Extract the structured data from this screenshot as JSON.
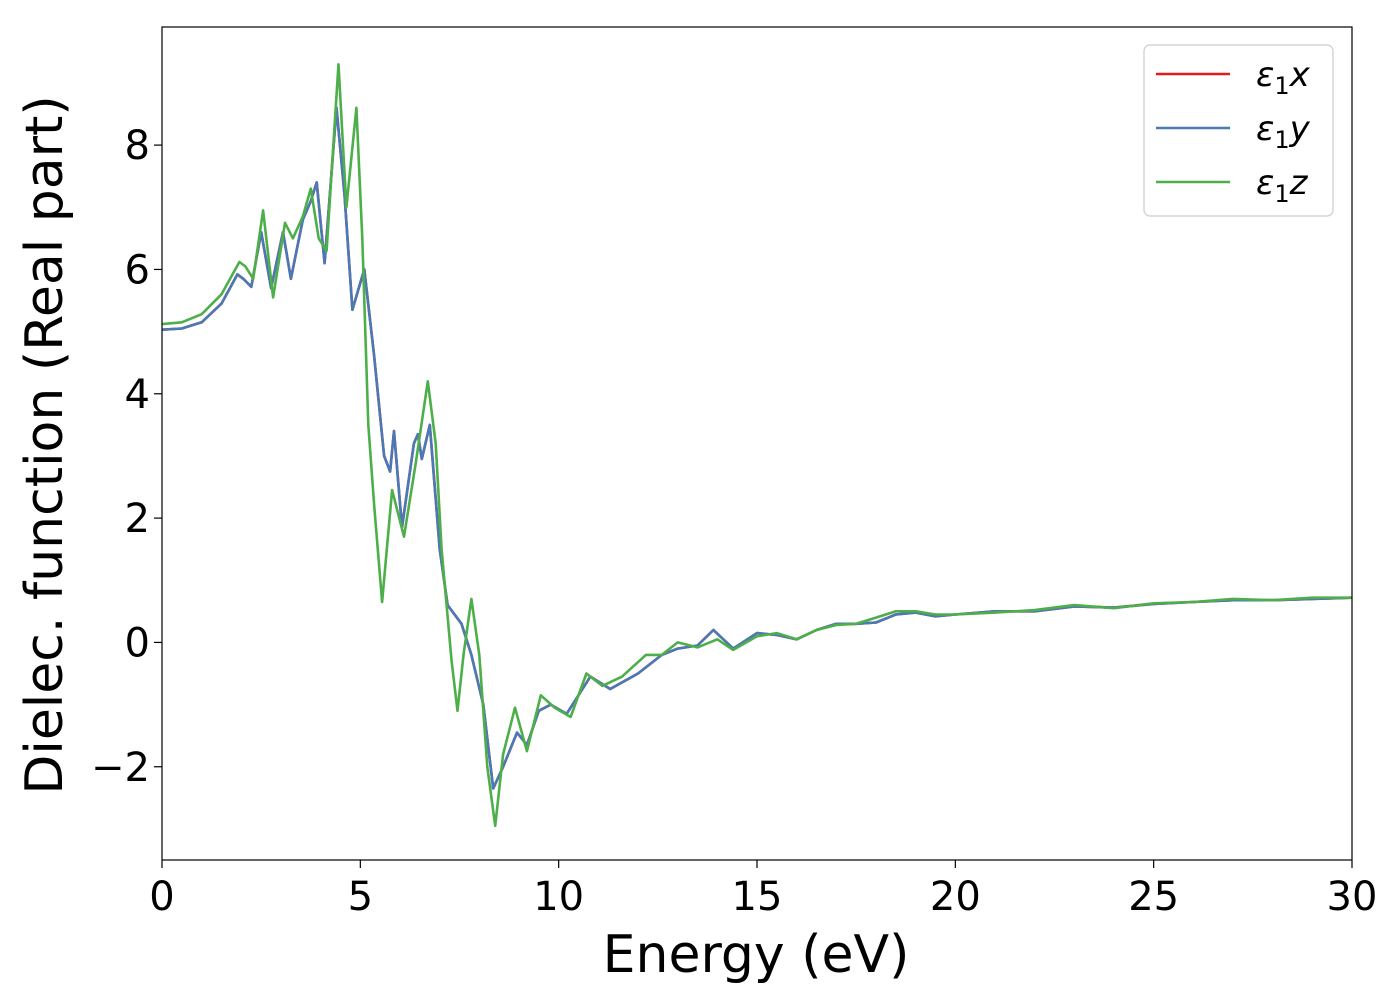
{
  "chart_data": {
    "type": "line",
    "title": "",
    "xlabel": "Energy (eV)",
    "ylabel": "Dielec. function (Real part)",
    "xlim": [
      0,
      30
    ],
    "ylim": [
      -3.5,
      9.9
    ],
    "xticks": [
      0,
      5,
      10,
      15,
      20,
      25,
      30
    ],
    "xtick_labels": [
      "0",
      "5",
      "10",
      "15",
      "20",
      "25",
      "30"
    ],
    "yticks": [
      -2,
      0,
      2,
      4,
      6,
      8
    ],
    "ytick_labels": [
      "−2",
      "0",
      "2",
      "4",
      "6",
      "8"
    ],
    "grid": false,
    "legend_position": "top-right",
    "series": [
      {
        "name": "ε1x",
        "legend_main": "ε",
        "legend_sub": "1",
        "legend_var": "x",
        "color": "#e41a1c",
        "points": [
          [
            0,
            5.03
          ],
          [
            0.5,
            5.05
          ],
          [
            1,
            5.15
          ],
          [
            1.5,
            5.45
          ],
          [
            1.9,
            5.92
          ],
          [
            2.05,
            5.85
          ],
          [
            2.25,
            5.72
          ],
          [
            2.5,
            6.6
          ],
          [
            2.75,
            5.7
          ],
          [
            3.05,
            6.6
          ],
          [
            3.25,
            5.85
          ],
          [
            3.55,
            6.8
          ],
          [
            3.75,
            7.1
          ],
          [
            3.9,
            7.4
          ],
          [
            4.1,
            6.1
          ],
          [
            4.4,
            8.6
          ],
          [
            4.6,
            7.2
          ],
          [
            4.8,
            5.35
          ],
          [
            5.1,
            6.0
          ],
          [
            5.35,
            4.6
          ],
          [
            5.6,
            3.0
          ],
          [
            5.75,
            2.75
          ],
          [
            5.85,
            3.4
          ],
          [
            6.05,
            1.85
          ],
          [
            6.35,
            3.2
          ],
          [
            6.45,
            3.35
          ],
          [
            6.55,
            2.95
          ],
          [
            6.75,
            3.5
          ],
          [
            7.0,
            1.5
          ],
          [
            7.2,
            0.6
          ],
          [
            7.55,
            0.3
          ],
          [
            7.8,
            -0.2
          ],
          [
            8.1,
            -1.0
          ],
          [
            8.35,
            -2.35
          ],
          [
            8.6,
            -2.0
          ],
          [
            8.95,
            -1.45
          ],
          [
            9.2,
            -1.65
          ],
          [
            9.5,
            -1.1
          ],
          [
            9.8,
            -1.0
          ],
          [
            10.2,
            -1.15
          ],
          [
            10.8,
            -0.55
          ],
          [
            11.3,
            -0.75
          ],
          [
            12.0,
            -0.5
          ],
          [
            12.6,
            -0.2
          ],
          [
            13.0,
            -0.1
          ],
          [
            13.5,
            -0.05
          ],
          [
            13.9,
            0.2
          ],
          [
            14.4,
            -0.1
          ],
          [
            15.0,
            0.15
          ],
          [
            15.5,
            0.12
          ],
          [
            16.0,
            0.05
          ],
          [
            16.5,
            0.2
          ],
          [
            17.0,
            0.3
          ],
          [
            17.5,
            0.3
          ],
          [
            18.0,
            0.32
          ],
          [
            18.5,
            0.45
          ],
          [
            19.0,
            0.48
          ],
          [
            19.5,
            0.42
          ],
          [
            20,
            0.45
          ],
          [
            21,
            0.5
          ],
          [
            22,
            0.5
          ],
          [
            23,
            0.58
          ],
          [
            24,
            0.56
          ],
          [
            25,
            0.62
          ],
          [
            26,
            0.65
          ],
          [
            27,
            0.68
          ],
          [
            28,
            0.68
          ],
          [
            29,
            0.7
          ],
          [
            30,
            0.72
          ]
        ]
      },
      {
        "name": "ε1y",
        "legend_main": "ε",
        "legend_sub": "1",
        "legend_var": "y",
        "color": "#4a7ab5",
        "points": [
          [
            0,
            5.03
          ],
          [
            0.5,
            5.05
          ],
          [
            1,
            5.15
          ],
          [
            1.5,
            5.45
          ],
          [
            1.9,
            5.92
          ],
          [
            2.05,
            5.85
          ],
          [
            2.25,
            5.72
          ],
          [
            2.5,
            6.6
          ],
          [
            2.75,
            5.7
          ],
          [
            3.05,
            6.6
          ],
          [
            3.25,
            5.85
          ],
          [
            3.55,
            6.8
          ],
          [
            3.75,
            7.1
          ],
          [
            3.9,
            7.4
          ],
          [
            4.1,
            6.1
          ],
          [
            4.4,
            8.6
          ],
          [
            4.6,
            7.2
          ],
          [
            4.8,
            5.35
          ],
          [
            5.1,
            6.0
          ],
          [
            5.35,
            4.6
          ],
          [
            5.6,
            3.0
          ],
          [
            5.75,
            2.75
          ],
          [
            5.85,
            3.4
          ],
          [
            6.05,
            1.85
          ],
          [
            6.35,
            3.2
          ],
          [
            6.45,
            3.35
          ],
          [
            6.55,
            2.95
          ],
          [
            6.75,
            3.5
          ],
          [
            7.0,
            1.5
          ],
          [
            7.2,
            0.6
          ],
          [
            7.55,
            0.3
          ],
          [
            7.8,
            -0.2
          ],
          [
            8.1,
            -1.0
          ],
          [
            8.35,
            -2.35
          ],
          [
            8.6,
            -2.0
          ],
          [
            8.95,
            -1.45
          ],
          [
            9.2,
            -1.65
          ],
          [
            9.5,
            -1.1
          ],
          [
            9.8,
            -1.0
          ],
          [
            10.2,
            -1.15
          ],
          [
            10.8,
            -0.55
          ],
          [
            11.3,
            -0.75
          ],
          [
            12.0,
            -0.5
          ],
          [
            12.6,
            -0.2
          ],
          [
            13.0,
            -0.1
          ],
          [
            13.5,
            -0.05
          ],
          [
            13.9,
            0.2
          ],
          [
            14.4,
            -0.1
          ],
          [
            15.0,
            0.15
          ],
          [
            15.5,
            0.12
          ],
          [
            16.0,
            0.05
          ],
          [
            16.5,
            0.2
          ],
          [
            17.0,
            0.3
          ],
          [
            17.5,
            0.3
          ],
          [
            18.0,
            0.32
          ],
          [
            18.5,
            0.45
          ],
          [
            19.0,
            0.48
          ],
          [
            19.5,
            0.42
          ],
          [
            20,
            0.45
          ],
          [
            21,
            0.5
          ],
          [
            22,
            0.5
          ],
          [
            23,
            0.58
          ],
          [
            24,
            0.56
          ],
          [
            25,
            0.62
          ],
          [
            26,
            0.65
          ],
          [
            27,
            0.68
          ],
          [
            28,
            0.68
          ],
          [
            29,
            0.7
          ],
          [
            30,
            0.72
          ]
        ]
      },
      {
        "name": "ε1z",
        "legend_main": "ε",
        "legend_sub": "1",
        "legend_var": "z",
        "color": "#4daf4a",
        "points": [
          [
            0,
            5.12
          ],
          [
            0.5,
            5.15
          ],
          [
            1,
            5.28
          ],
          [
            1.5,
            5.6
          ],
          [
            1.95,
            6.12
          ],
          [
            2.1,
            6.05
          ],
          [
            2.3,
            5.85
          ],
          [
            2.55,
            6.95
          ],
          [
            2.8,
            5.55
          ],
          [
            3.1,
            6.75
          ],
          [
            3.3,
            6.5
          ],
          [
            3.55,
            6.85
          ],
          [
            3.75,
            7.3
          ],
          [
            3.95,
            6.5
          ],
          [
            4.15,
            6.3
          ],
          [
            4.45,
            9.3
          ],
          [
            4.65,
            7.0
          ],
          [
            4.9,
            8.6
          ],
          [
            5.05,
            6.5
          ],
          [
            5.2,
            3.5
          ],
          [
            5.35,
            2.2
          ],
          [
            5.55,
            0.65
          ],
          [
            5.8,
            2.45
          ],
          [
            6.1,
            1.7
          ],
          [
            6.4,
            2.9
          ],
          [
            6.7,
            4.2
          ],
          [
            6.9,
            3.2
          ],
          [
            7.05,
            1.5
          ],
          [
            7.3,
            -0.3
          ],
          [
            7.45,
            -1.1
          ],
          [
            7.6,
            -0.2
          ],
          [
            7.8,
            0.7
          ],
          [
            8.0,
            -0.2
          ],
          [
            8.2,
            -2.0
          ],
          [
            8.4,
            -2.95
          ],
          [
            8.6,
            -1.8
          ],
          [
            8.9,
            -1.05
          ],
          [
            9.2,
            -1.75
          ],
          [
            9.55,
            -0.85
          ],
          [
            9.9,
            -1.05
          ],
          [
            10.3,
            -1.2
          ],
          [
            10.7,
            -0.5
          ],
          [
            11.1,
            -0.7
          ],
          [
            11.6,
            -0.55
          ],
          [
            12.2,
            -0.2
          ],
          [
            12.6,
            -0.2
          ],
          [
            13.0,
            0.0
          ],
          [
            13.5,
            -0.08
          ],
          [
            14.0,
            0.05
          ],
          [
            14.4,
            -0.12
          ],
          [
            15.0,
            0.1
          ],
          [
            15.5,
            0.15
          ],
          [
            16.0,
            0.05
          ],
          [
            16.5,
            0.2
          ],
          [
            17.0,
            0.28
          ],
          [
            17.5,
            0.3
          ],
          [
            18.0,
            0.4
          ],
          [
            18.5,
            0.5
          ],
          [
            19.0,
            0.5
          ],
          [
            19.5,
            0.45
          ],
          [
            20,
            0.45
          ],
          [
            21,
            0.48
          ],
          [
            22,
            0.52
          ],
          [
            23,
            0.6
          ],
          [
            24,
            0.55
          ],
          [
            25,
            0.63
          ],
          [
            26,
            0.65
          ],
          [
            27,
            0.7
          ],
          [
            28,
            0.68
          ],
          [
            29,
            0.72
          ],
          [
            30,
            0.72
          ]
        ]
      }
    ]
  }
}
